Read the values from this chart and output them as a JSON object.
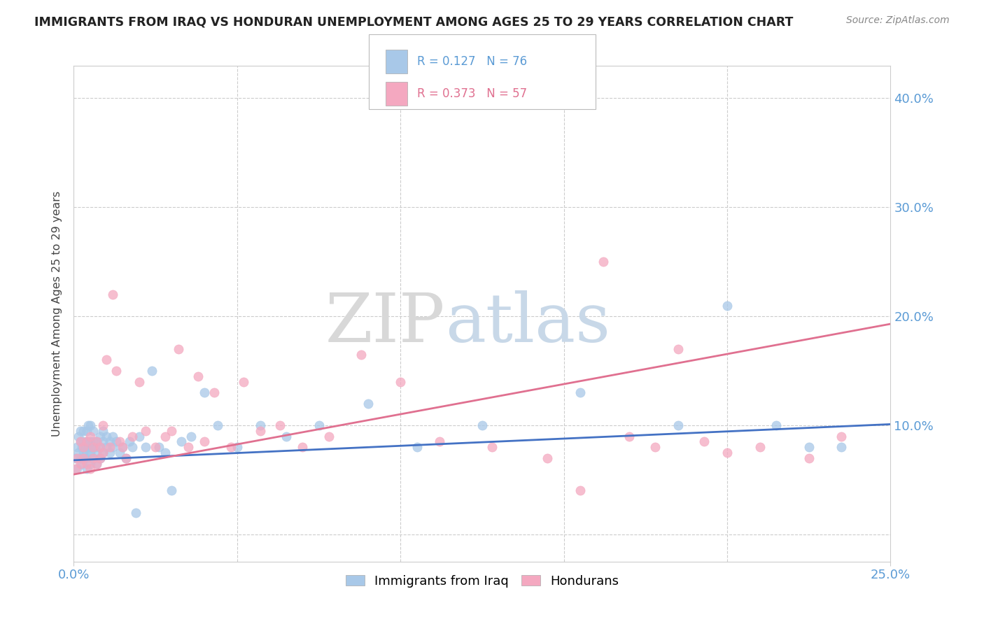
{
  "title": "IMMIGRANTS FROM IRAQ VS HONDURAN UNEMPLOYMENT AMONG AGES 25 TO 29 YEARS CORRELATION CHART",
  "source": "Source: ZipAtlas.com",
  "ylabel": "Unemployment Among Ages 25 to 29 years",
  "xmin": 0.0,
  "xmax": 0.25,
  "ymin": -0.025,
  "ymax": 0.43,
  "yticks": [
    0.0,
    0.1,
    0.2,
    0.3,
    0.4
  ],
  "ytick_labels": [
    "",
    "10.0%",
    "20.0%",
    "30.0%",
    "40.0%"
  ],
  "color_iraq": "#a8c8e8",
  "color_honduras": "#f4a8c0",
  "line_color_iraq": "#4472c4",
  "line_color_honduras": "#e07090",
  "axis_color": "#5b9bd5",
  "background_color": "#ffffff",
  "iraq_line_x0": 0.0,
  "iraq_line_x1": 0.25,
  "iraq_line_y0": 0.068,
  "iraq_line_y1": 0.101,
  "honduras_line_x0": 0.0,
  "honduras_line_x1": 0.25,
  "honduras_line_y0": 0.055,
  "honduras_line_y1": 0.193,
  "iraq_x": [
    0.0005,
    0.001,
    0.001,
    0.0015,
    0.0015,
    0.002,
    0.002,
    0.002,
    0.0025,
    0.0025,
    0.003,
    0.003,
    0.003,
    0.003,
    0.0035,
    0.0035,
    0.004,
    0.004,
    0.004,
    0.004,
    0.0045,
    0.0045,
    0.005,
    0.005,
    0.005,
    0.005,
    0.0055,
    0.006,
    0.006,
    0.006,
    0.0065,
    0.007,
    0.007,
    0.007,
    0.008,
    0.008,
    0.008,
    0.009,
    0.009,
    0.009,
    0.01,
    0.01,
    0.011,
    0.011,
    0.012,
    0.012,
    0.013,
    0.014,
    0.015,
    0.016,
    0.017,
    0.018,
    0.019,
    0.02,
    0.022,
    0.024,
    0.026,
    0.028,
    0.03,
    0.033,
    0.036,
    0.04,
    0.044,
    0.05,
    0.057,
    0.065,
    0.075,
    0.09,
    0.105,
    0.125,
    0.155,
    0.185,
    0.2,
    0.215,
    0.225,
    0.235
  ],
  "iraq_y": [
    0.07,
    0.06,
    0.08,
    0.075,
    0.09,
    0.07,
    0.085,
    0.095,
    0.065,
    0.08,
    0.07,
    0.075,
    0.085,
    0.095,
    0.07,
    0.08,
    0.06,
    0.075,
    0.085,
    0.095,
    0.08,
    0.1,
    0.065,
    0.075,
    0.085,
    0.1,
    0.08,
    0.07,
    0.085,
    0.095,
    0.08,
    0.065,
    0.075,
    0.085,
    0.07,
    0.08,
    0.09,
    0.075,
    0.085,
    0.095,
    0.08,
    0.09,
    0.075,
    0.085,
    0.08,
    0.09,
    0.085,
    0.075,
    0.08,
    0.07,
    0.085,
    0.08,
    0.02,
    0.09,
    0.08,
    0.15,
    0.08,
    0.075,
    0.04,
    0.085,
    0.09,
    0.13,
    0.1,
    0.08,
    0.1,
    0.09,
    0.1,
    0.12,
    0.08,
    0.1,
    0.13,
    0.1,
    0.21,
    0.1,
    0.08,
    0.08
  ],
  "honduras_x": [
    0.0005,
    0.001,
    0.002,
    0.002,
    0.003,
    0.003,
    0.004,
    0.004,
    0.005,
    0.005,
    0.006,
    0.006,
    0.007,
    0.007,
    0.008,
    0.008,
    0.009,
    0.009,
    0.01,
    0.011,
    0.012,
    0.013,
    0.014,
    0.015,
    0.016,
    0.018,
    0.02,
    0.022,
    0.025,
    0.028,
    0.03,
    0.032,
    0.035,
    0.038,
    0.04,
    0.043,
    0.048,
    0.052,
    0.057,
    0.063,
    0.07,
    0.078,
    0.088,
    0.1,
    0.112,
    0.128,
    0.145,
    0.162,
    0.178,
    0.193,
    0.21,
    0.225,
    0.235,
    0.2,
    0.185,
    0.17,
    0.155
  ],
  "honduras_y": [
    0.06,
    0.07,
    0.065,
    0.085,
    0.07,
    0.08,
    0.065,
    0.085,
    0.06,
    0.09,
    0.07,
    0.08,
    0.065,
    0.085,
    0.07,
    0.08,
    0.1,
    0.075,
    0.16,
    0.08,
    0.22,
    0.15,
    0.085,
    0.08,
    0.07,
    0.09,
    0.14,
    0.095,
    0.08,
    0.09,
    0.095,
    0.17,
    0.08,
    0.145,
    0.085,
    0.13,
    0.08,
    0.14,
    0.095,
    0.1,
    0.08,
    0.09,
    0.165,
    0.14,
    0.085,
    0.08,
    0.07,
    0.25,
    0.08,
    0.085,
    0.08,
    0.07,
    0.09,
    0.075,
    0.17,
    0.09,
    0.04
  ]
}
